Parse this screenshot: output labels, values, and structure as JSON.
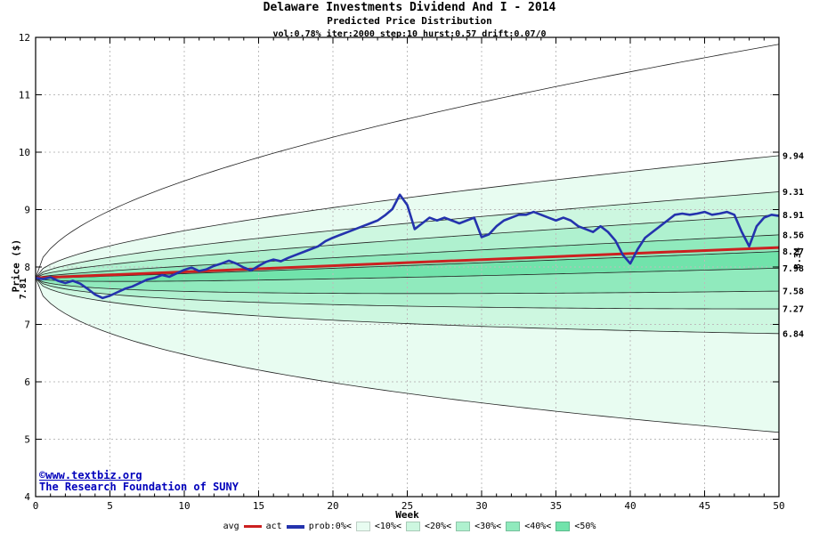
{
  "footer": {
    "link": "©www.textbiz.org",
    "credit": "The Research Foundation of SUNY"
  },
  "chart_data": {
    "type": "area",
    "title": "Delaware Investments Dividend And I - 2014",
    "subtitle": "Predicted Price Distribution",
    "params": "vol:0.78% iter:2000 step:10 hurst:0.57 drift:0.07/0",
    "xlabel": "Week",
    "ylabel": "Price ($)",
    "xlim": [
      0,
      50
    ],
    "ylim": [
      4,
      12
    ],
    "x_ticks": [
      0,
      5,
      10,
      15,
      20,
      25,
      30,
      35,
      40,
      45,
      50
    ],
    "y_ticks": [
      4,
      5,
      6,
      7,
      8,
      9,
      10,
      11,
      12
    ],
    "grid": true,
    "legend_position": "bottom",
    "start_price": 7.81,
    "start_label": "7.81",
    "avg": {
      "name": "avg",
      "start": 7.81,
      "end": 8.34,
      "end_label": "8.34",
      "color": "#cc2020"
    },
    "act": {
      "name": "act",
      "color": "#2433ad",
      "step": 0.5,
      "values": [
        7.81,
        7.79,
        7.82,
        7.76,
        7.72,
        7.76,
        7.71,
        7.62,
        7.52,
        7.46,
        7.5,
        7.56,
        7.62,
        7.66,
        7.72,
        7.78,
        7.81,
        7.86,
        7.83,
        7.89,
        7.95,
        7.99,
        7.93,
        7.96,
        8.02,
        8.06,
        8.11,
        8.06,
        7.99,
        7.94,
        8.02,
        8.09,
        8.13,
        8.1,
        8.16,
        8.21,
        8.26,
        8.31,
        8.36,
        8.45,
        8.51,
        8.56,
        8.61,
        8.66,
        8.71,
        8.76,
        8.81,
        8.9,
        9.01,
        9.26,
        9.08,
        8.66,
        8.76,
        8.86,
        8.81,
        8.86,
        8.81,
        8.76,
        8.81,
        8.86,
        8.52,
        8.57,
        8.71,
        8.81,
        8.86,
        8.91,
        8.91,
        8.96,
        8.91,
        8.86,
        8.81,
        8.86,
        8.81,
        8.71,
        8.66,
        8.61,
        8.71,
        8.61,
        8.46,
        8.21,
        8.06,
        8.31,
        8.51,
        8.61,
        8.71,
        8.81,
        8.91,
        8.93,
        8.91,
        8.93,
        8.96,
        8.91,
        8.93,
        8.96,
        8.91,
        8.61,
        8.36,
        8.71,
        8.86,
        8.91,
        8.89
      ]
    },
    "bands": {
      "start": 7.81,
      "avg_end": 8.34,
      "boundaries": [
        {
          "end": 11.88,
          "label": ""
        },
        {
          "end": 9.94,
          "label": "9.94"
        },
        {
          "end": 9.31,
          "label": "9.31"
        },
        {
          "end": 8.91,
          "label": "8.91"
        },
        {
          "end": 8.56,
          "label": "8.56"
        },
        {
          "end": 8.27,
          "label": "8.27"
        },
        {
          "end": 7.98,
          "label": "7.98"
        },
        {
          "end": 7.58,
          "label": "7.58"
        },
        {
          "end": 7.27,
          "label": "7.27"
        },
        {
          "end": 6.84,
          "label": "6.84"
        },
        {
          "end": 5.12,
          "label": ""
        }
      ],
      "fills": [
        "#ffffff",
        "#e8fcf1",
        "#cdf7e0",
        "#aff1cf",
        "#90eabd",
        "#71e3ab",
        "#90eabd",
        "#aff1cf",
        "#cdf7e0",
        "#e8fcf1"
      ]
    },
    "colors": {
      "grid": "#bcbcbc",
      "axis": "#000000",
      "boundary": "#222222"
    },
    "legend": {
      "items": [
        {
          "label": "avg",
          "type": "line",
          "color": "#cc2020",
          "thick": false
        },
        {
          "label": "act",
          "type": "line",
          "color": "#2433ad",
          "thick": true
        },
        {
          "label": "prob:0%<",
          "type": "text"
        },
        {
          "label": "<10%<",
          "type": "swatch",
          "color": "#e8fcf1"
        },
        {
          "label": "<20%<",
          "type": "swatch",
          "color": "#cdf7e0"
        },
        {
          "label": "<30%<",
          "type": "swatch",
          "color": "#aff1cf"
        },
        {
          "label": "<40%<",
          "type": "swatch",
          "color": "#90eabd"
        },
        {
          "label": "<50%",
          "type": "swatch",
          "color": "#71e3ab"
        }
      ]
    }
  }
}
